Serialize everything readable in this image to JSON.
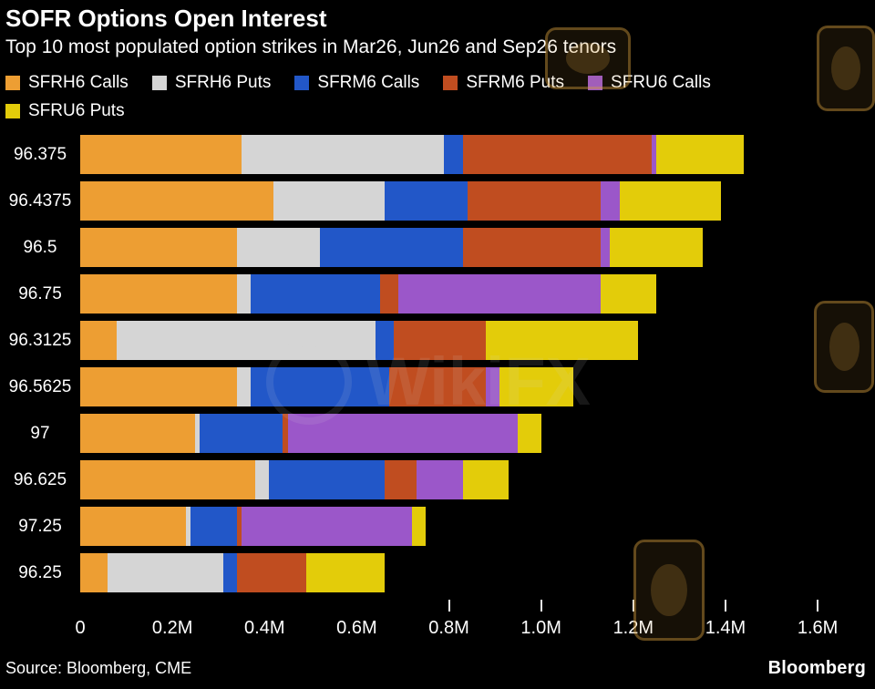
{
  "header": {
    "title": "SOFR Options Open Interest",
    "subtitle": "Top 10 most populated option strikes in Mar26, Jun26 and Sep26 tenors"
  },
  "chart_data": {
    "type": "bar",
    "orientation": "horizontal",
    "stacked": true,
    "grid": false,
    "legend_position": "top",
    "axis_max": 1.675,
    "xlim": [
      0,
      1.6
    ],
    "categories": [
      "96.375",
      "96.4375",
      "96.5",
      "96.75",
      "96.3125",
      "96.5625",
      "97",
      "96.625",
      "97.25",
      "96.25"
    ],
    "series": [
      {
        "name": "SFRH6 Calls",
        "color": "#ED9E33",
        "values": [
          0.35,
          0.42,
          0.34,
          0.34,
          0.08,
          0.34,
          0.25,
          0.38,
          0.23,
          0.06
        ]
      },
      {
        "name": "SFRH6 Puts",
        "color": "#D5D5D5",
        "values": [
          0.44,
          0.24,
          0.18,
          0.03,
          0.56,
          0.03,
          0.01,
          0.03,
          0.01,
          0.25
        ]
      },
      {
        "name": "SFRM6 Calls",
        "color": "#2257C8",
        "values": [
          0.04,
          0.18,
          0.31,
          0.28,
          0.04,
          0.3,
          0.18,
          0.25,
          0.1,
          0.03
        ]
      },
      {
        "name": "SFRM6 Puts",
        "color": "#C04D20",
        "values": [
          0.41,
          0.29,
          0.3,
          0.04,
          0.2,
          0.21,
          0.01,
          0.07,
          0.01,
          0.15
        ]
      },
      {
        "name": "SFRU6 Calls",
        "color": "#9B57C9",
        "values": [
          0.01,
          0.04,
          0.02,
          0.44,
          0.0,
          0.03,
          0.5,
          0.1,
          0.37,
          0.0
        ]
      },
      {
        "name": "SFRU6 Puts",
        "color": "#E3CC0A",
        "values": [
          0.19,
          0.22,
          0.2,
          0.12,
          0.33,
          0.16,
          0.05,
          0.1,
          0.03,
          0.17
        ]
      }
    ],
    "x_ticks": [
      {
        "value": 0.0,
        "label": "0",
        "mark": false
      },
      {
        "value": 0.2,
        "label": "0.2M",
        "mark": false
      },
      {
        "value": 0.4,
        "label": "0.4M",
        "mark": false
      },
      {
        "value": 0.6,
        "label": "0.6M",
        "mark": false
      },
      {
        "value": 0.8,
        "label": "0.8M",
        "mark": true
      },
      {
        "value": 1.0,
        "label": "1.0M",
        "mark": true
      },
      {
        "value": 1.2,
        "label": "1.2M",
        "mark": true
      },
      {
        "value": 1.4,
        "label": "1.4M",
        "mark": true
      },
      {
        "value": 1.6,
        "label": "1.6M",
        "mark": true
      }
    ],
    "title": "SOFR Options Open Interest",
    "xlabel": "",
    "ylabel": ""
  },
  "footer": {
    "source": "Source: Bloomberg, CME",
    "brand": "Bloomberg"
  },
  "watermark": {
    "text": "WikiFX"
  }
}
